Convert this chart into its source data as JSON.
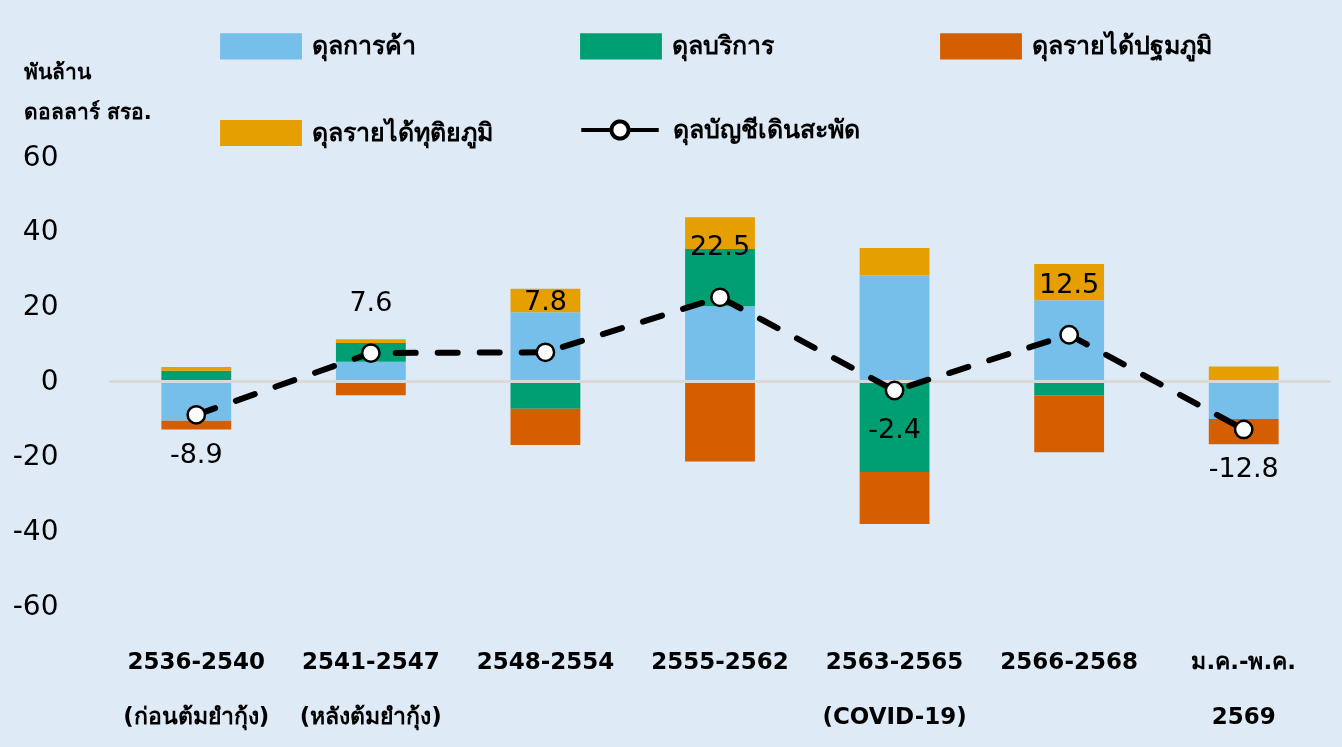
{
  "chart_data": {
    "type": "bar",
    "stacked": true,
    "categories": [
      "2536-2540 (ก่อนต้มยำกุ้ง)",
      "2541-2547 (หลังต้มยำกุ้ง)",
      "2548-2554",
      "2555-2562",
      "2563-2565 (COVID-19)",
      "2566-2568",
      "ม.ค.-พ.ค. 2569"
    ],
    "ylabel": "พันล้าน ดอลลาร์ สรอ.",
    "ylim": [
      -60,
      60
    ],
    "yticks": [
      -60,
      -40,
      -20,
      0,
      20,
      40,
      60
    ],
    "grid": false,
    "legend": "top",
    "ref_lines": [
      {
        "axis": "y",
        "value": 0,
        "color": "#d9d9d9"
      }
    ],
    "series": [
      {
        "name": "ดุลการค้า",
        "color": "#75bfea",
        "values": [
          -10.5,
          5.3,
          18.5,
          20.1,
          28.3,
          21.7,
          -10.0
        ]
      },
      {
        "name": "ดุลบริการ",
        "color": "#009e73",
        "values": [
          2.9,
          5.0,
          -7.3,
          15.3,
          -24.2,
          -3.7,
          null
        ]
      },
      {
        "name": "ดุลรายได้ปฐมภูมิ",
        "color": "#d55e00",
        "values": [
          -2.3,
          -3.7,
          -9.7,
          -21.4,
          -13.9,
          -15.2,
          -6.8
        ]
      },
      {
        "name": "ดุลรายได้ทุติยภูมิ",
        "color": "#e69f00",
        "values": [
          1.0,
          1.0,
          6.3,
          8.5,
          7.4,
          9.7,
          4.0
        ]
      },
      {
        "name": "ดุลบัญชีเดินสะพัด",
        "type": "line",
        "color": "#000000",
        "marker": "circle",
        "line_style": "dashed",
        "values": [
          -8.9,
          7.6,
          7.8,
          22.5,
          -2.4,
          12.5,
          -12.8
        ],
        "value_labels": [
          "-8.9",
          "7.6",
          "7.8",
          "22.5",
          "-2.4",
          "12.5",
          "-12.8"
        ]
      }
    ]
  }
}
